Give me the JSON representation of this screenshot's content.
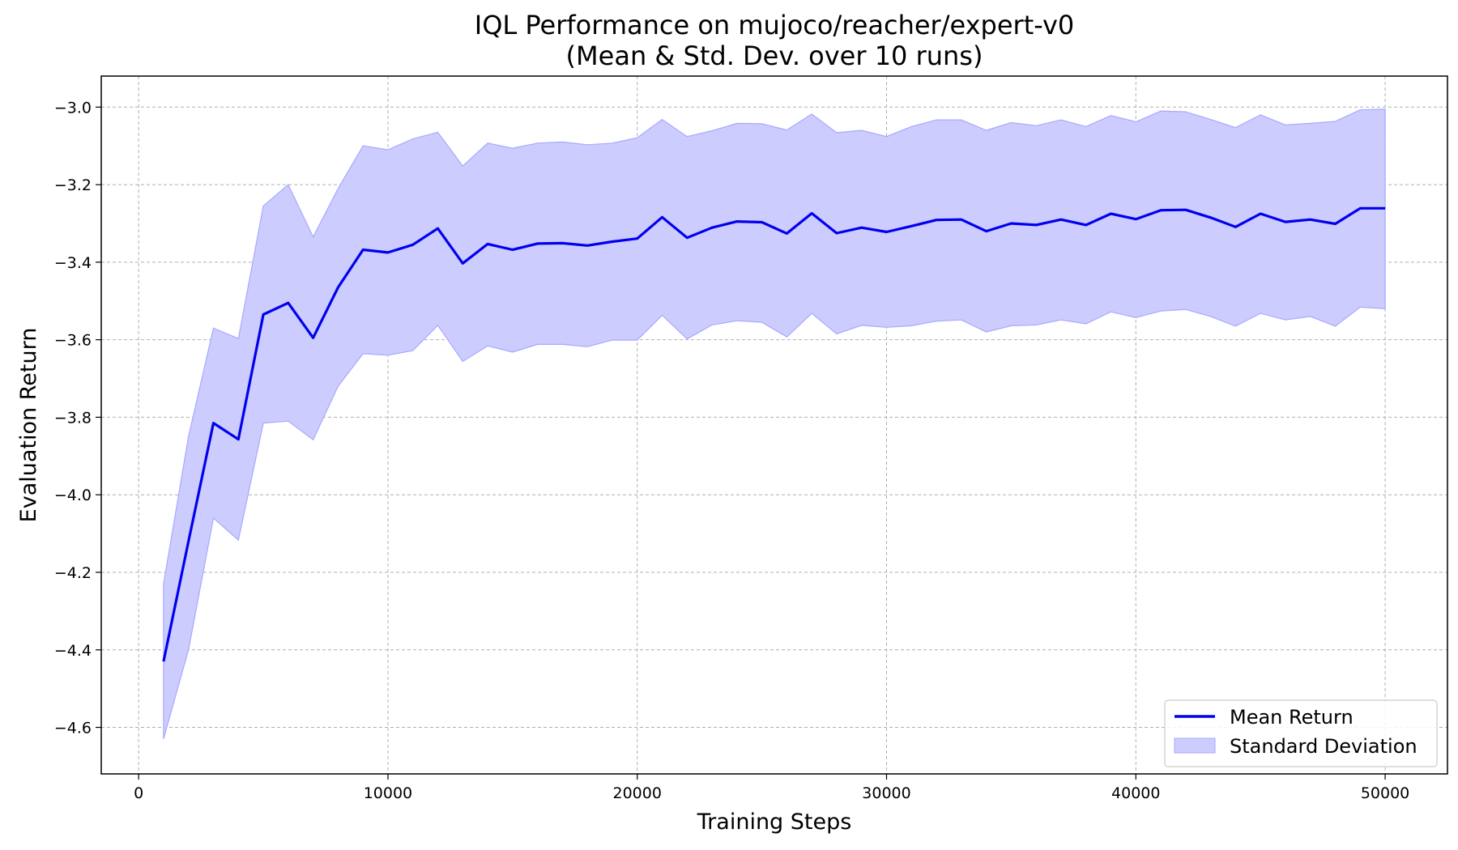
{
  "chart_data": {
    "type": "line",
    "title": "IQL Performance on mujoco/reacher/expert-v0",
    "subtitle": "(Mean & Std. Dev. over 10 runs)",
    "xlabel": "Training Steps",
    "ylabel": "Evaluation Return",
    "xlim": [
      -1500,
      52500
    ],
    "ylim": [
      -4.72,
      -2.92
    ],
    "xticks": [
      0,
      10000,
      20000,
      30000,
      40000,
      50000
    ],
    "xtick_labels": [
      "0",
      "10000",
      "20000",
      "30000",
      "40000",
      "50000"
    ],
    "yticks": [
      -3.0,
      -3.2,
      -3.4,
      -3.6,
      -3.8,
      -4.0,
      -4.2,
      -4.4,
      -4.6
    ],
    "ytick_labels": [
      "−3.0",
      "−3.2",
      "−3.4",
      "−3.6",
      "−3.8",
      "−4.0",
      "−4.2",
      "−4.4",
      "−4.6"
    ],
    "grid": true,
    "legend_position": "bottom-right",
    "x": [
      1000,
      2000,
      3000,
      4000,
      5000,
      6000,
      7000,
      8000,
      9000,
      10000,
      11000,
      12000,
      13000,
      14000,
      15000,
      16000,
      17000,
      18000,
      19000,
      20000,
      21000,
      22000,
      23000,
      24000,
      25000,
      26000,
      27000,
      28000,
      29000,
      30000,
      31000,
      32000,
      33000,
      34000,
      35000,
      36000,
      37000,
      38000,
      39000,
      40000,
      41000,
      42000,
      43000,
      44000,
      45000,
      46000,
      47000,
      48000,
      49000,
      50000
    ],
    "series": [
      {
        "name": "Mean Return",
        "color": "#0000ee",
        "values": [
          -4.43,
          -4.12,
          -3.815,
          -3.857,
          -3.535,
          -3.505,
          -3.595,
          -3.465,
          -3.368,
          -3.375,
          -3.355,
          -3.313,
          -3.403,
          -3.353,
          -3.368,
          -3.352,
          -3.351,
          -3.357,
          -3.347,
          -3.339,
          -3.284,
          -3.337,
          -3.311,
          -3.295,
          -3.297,
          -3.326,
          -3.274,
          -3.325,
          -3.311,
          -3.322,
          -3.307,
          -3.291,
          -3.29,
          -3.32,
          -3.3,
          -3.304,
          -3.29,
          -3.304,
          -3.275,
          -3.289,
          -3.266,
          -3.265,
          -3.285,
          -3.309,
          -3.275,
          -3.296,
          -3.29,
          -3.301,
          -3.261,
          -3.261
        ]
      },
      {
        "name": "Standard Deviation",
        "type": "band",
        "color": "#ccccff",
        "upper": [
          -4.23,
          -3.85,
          -3.57,
          -3.597,
          -3.255,
          -3.2,
          -3.335,
          -3.21,
          -3.1,
          -3.11,
          -3.082,
          -3.065,
          -3.152,
          -3.093,
          -3.106,
          -3.093,
          -3.09,
          -3.097,
          -3.093,
          -3.079,
          -3.032,
          -3.076,
          -3.061,
          -3.042,
          -3.043,
          -3.059,
          -3.018,
          -3.066,
          -3.06,
          -3.076,
          -3.05,
          -3.033,
          -3.033,
          -3.06,
          -3.04,
          -3.048,
          -3.033,
          -3.05,
          -3.022,
          -3.038,
          -3.01,
          -3.012,
          -3.032,
          -3.053,
          -3.02,
          -3.046,
          -3.042,
          -3.037,
          -3.007,
          -3.005
        ],
        "lower": [
          -4.63,
          -4.4,
          -4.06,
          -4.117,
          -3.815,
          -3.81,
          -3.858,
          -3.72,
          -3.636,
          -3.64,
          -3.628,
          -3.563,
          -3.656,
          -3.616,
          -3.632,
          -3.612,
          -3.612,
          -3.618,
          -3.601,
          -3.601,
          -3.537,
          -3.598,
          -3.562,
          -3.551,
          -3.555,
          -3.593,
          -3.532,
          -3.585,
          -3.563,
          -3.568,
          -3.564,
          -3.552,
          -3.549,
          -3.58,
          -3.564,
          -3.562,
          -3.549,
          -3.559,
          -3.528,
          -3.543,
          -3.526,
          -3.522,
          -3.54,
          -3.565,
          -3.532,
          -3.549,
          -3.54,
          -3.565,
          -3.516,
          -3.52
        ]
      }
    ]
  }
}
